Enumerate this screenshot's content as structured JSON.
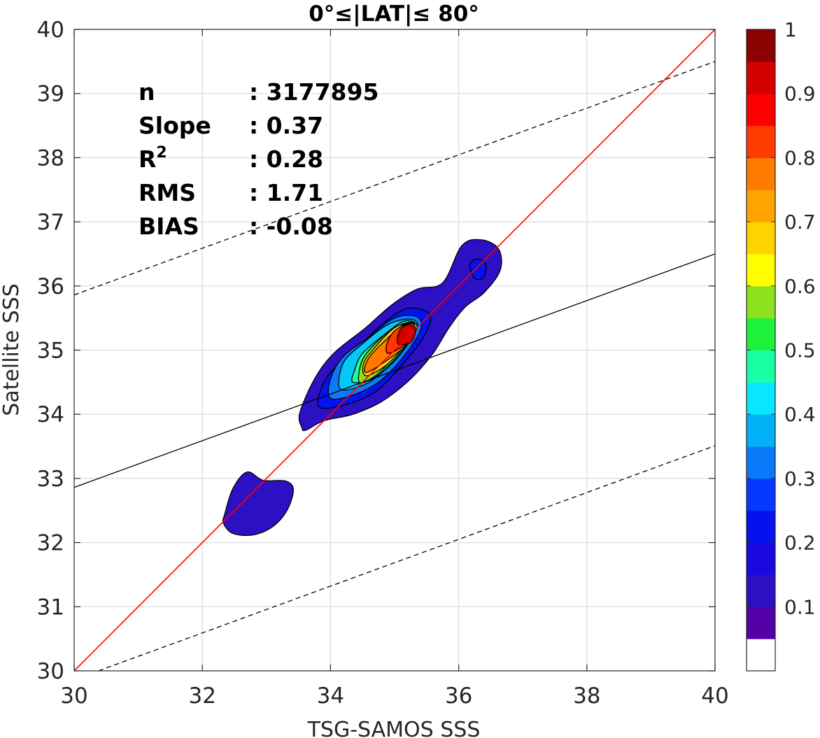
{
  "chart_data": {
    "type": "contour",
    "title": "0°≤|LAT|≤ 80°",
    "xlabel": "TSG-SAMOS SSS",
    "ylabel": "Satellite SSS",
    "xlim": [
      30,
      40
    ],
    "ylim": [
      30,
      40
    ],
    "xticks": [
      "30",
      "32",
      "34",
      "36",
      "38",
      "40"
    ],
    "yticks": [
      "30",
      "31",
      "32",
      "33",
      "34",
      "35",
      "36",
      "37",
      "38",
      "39",
      "40"
    ],
    "grid": true,
    "stats": [
      {
        "label": "n",
        "value": ": 3177895"
      },
      {
        "label": "Slope",
        "value": ": 0.37"
      },
      {
        "label": "R",
        "sup": "2",
        "value": ": 0.28"
      },
      {
        "label": "RMS",
        "value": ": 1.71"
      },
      {
        "label": "BIAS",
        "value": ": -0.08"
      }
    ],
    "lines": {
      "one_to_one": {
        "color": "#ff0000",
        "slope": 1.0,
        "intercept": 0.0
      },
      "regression": {
        "color": "#000000",
        "x0": 30,
        "y0": 32.86,
        "x1": 40,
        "y1": 36.5
      },
      "upper_bound": {
        "color": "#000000",
        "dashed": true,
        "x0": 30,
        "y0": 35.86,
        "x1": 40,
        "y1": 39.5
      },
      "lower_bound": {
        "color": "#000000",
        "dashed": true,
        "x0": 30.38,
        "y0": 30,
        "x1": 40,
        "y1": 33.51
      }
    },
    "contours": [
      {
        "level": 0.05,
        "fill": "#2c10c4",
        "points": [
          [
            33.61,
            33.75
          ],
          [
            33.9,
            33.9
          ],
          [
            34.35,
            34.0
          ],
          [
            34.8,
            34.2
          ],
          [
            35.25,
            34.55
          ],
          [
            35.6,
            34.95
          ],
          [
            35.85,
            35.35
          ],
          [
            36.1,
            35.67
          ],
          [
            36.4,
            35.9
          ],
          [
            36.65,
            36.25
          ],
          [
            36.62,
            36.58
          ],
          [
            36.35,
            36.72
          ],
          [
            36.05,
            36.63
          ],
          [
            35.75,
            36.05
          ],
          [
            35.35,
            35.95
          ],
          [
            34.95,
            35.7
          ],
          [
            34.55,
            35.35
          ],
          [
            34.05,
            34.95
          ],
          [
            33.75,
            34.55
          ],
          [
            33.52,
            34.02
          ],
          [
            33.55,
            33.8
          ]
        ]
      },
      {
        "level": 0.05,
        "fill": "#2c10c4",
        "points": [
          [
            32.35,
            32.45
          ],
          [
            32.48,
            32.85
          ],
          [
            32.7,
            33.1
          ],
          [
            32.95,
            32.97
          ],
          [
            33.3,
            32.96
          ],
          [
            33.42,
            32.82
          ],
          [
            33.32,
            32.5
          ],
          [
            33.1,
            32.25
          ],
          [
            32.8,
            32.12
          ],
          [
            32.48,
            32.14
          ],
          [
            32.33,
            32.3
          ]
        ]
      },
      {
        "level": 0.15,
        "fill": "#0512ef",
        "points": [
          [
            33.85,
            34.1
          ],
          [
            34.25,
            34.15
          ],
          [
            34.7,
            34.35
          ],
          [
            35.1,
            34.75
          ],
          [
            35.45,
            35.2
          ],
          [
            35.55,
            35.55
          ],
          [
            35.2,
            35.65
          ],
          [
            34.8,
            35.4
          ],
          [
            34.4,
            35.0
          ],
          [
            34.0,
            34.65
          ],
          [
            33.82,
            34.3
          ]
        ]
      },
      {
        "level": 0.15,
        "fill": "#0512ef",
        "points": [
          [
            36.2,
            36.2
          ],
          [
            36.28,
            36.1
          ],
          [
            36.4,
            36.15
          ],
          [
            36.42,
            36.35
          ],
          [
            36.3,
            36.42
          ],
          [
            36.18,
            36.35
          ]
        ]
      },
      {
        "level": 0.25,
        "fill": "#0b7af9",
        "points": [
          [
            34.0,
            34.25
          ],
          [
            34.35,
            34.3
          ],
          [
            34.75,
            34.5
          ],
          [
            35.1,
            34.85
          ],
          [
            35.4,
            35.3
          ],
          [
            35.35,
            35.52
          ],
          [
            35.0,
            35.5
          ],
          [
            34.6,
            35.2
          ],
          [
            34.2,
            34.9
          ],
          [
            34.0,
            34.55
          ]
        ]
      },
      {
        "level": 0.35,
        "fill": "#07c7f6",
        "points": [
          [
            34.15,
            34.4
          ],
          [
            34.5,
            34.45
          ],
          [
            34.8,
            34.65
          ],
          [
            35.1,
            34.95
          ],
          [
            35.35,
            35.35
          ],
          [
            35.25,
            35.48
          ],
          [
            34.9,
            35.4
          ],
          [
            34.5,
            35.1
          ],
          [
            34.2,
            34.8
          ]
        ]
      },
      {
        "level": 0.45,
        "fill": "#19ffa3",
        "points": [
          [
            34.35,
            34.5
          ],
          [
            34.65,
            34.55
          ],
          [
            34.95,
            34.8
          ],
          [
            35.2,
            35.1
          ],
          [
            35.35,
            35.38
          ],
          [
            35.15,
            35.45
          ],
          [
            34.85,
            35.25
          ],
          [
            34.5,
            34.95
          ],
          [
            34.38,
            34.7
          ]
        ]
      },
      {
        "level": 0.55,
        "fill": "#8ee11f",
        "points": [
          [
            34.45,
            34.5
          ],
          [
            34.7,
            34.6
          ],
          [
            35.0,
            34.9
          ],
          [
            35.25,
            35.2
          ],
          [
            35.3,
            35.42
          ],
          [
            35.05,
            35.38
          ],
          [
            34.75,
            35.15
          ],
          [
            34.5,
            34.85
          ]
        ]
      },
      {
        "level": 0.65,
        "fill": "#ffd300",
        "points": [
          [
            34.55,
            34.6
          ],
          [
            34.85,
            34.75
          ],
          [
            35.1,
            35.0
          ],
          [
            35.28,
            35.25
          ],
          [
            35.28,
            35.42
          ],
          [
            35.0,
            35.35
          ],
          [
            34.7,
            35.05
          ],
          [
            34.52,
            34.8
          ]
        ]
      },
      {
        "level": 0.75,
        "fill": "#ff7b00",
        "points": [
          [
            34.55,
            34.65
          ],
          [
            34.85,
            34.82
          ],
          [
            35.15,
            35.05
          ],
          [
            35.3,
            35.3
          ],
          [
            35.15,
            35.4
          ],
          [
            34.8,
            35.1
          ],
          [
            34.58,
            34.85
          ]
        ]
      },
      {
        "level": 0.85,
        "fill": "#ff3a00",
        "points": [
          [
            34.9,
            34.95
          ],
          [
            35.15,
            35.08
          ],
          [
            35.32,
            35.3
          ],
          [
            35.25,
            35.42
          ],
          [
            35.0,
            35.3
          ],
          [
            34.88,
            35.1
          ]
        ]
      },
      {
        "level": 0.95,
        "fill": "#d40000",
        "points": [
          [
            35.05,
            35.1
          ],
          [
            35.25,
            35.12
          ],
          [
            35.32,
            35.3
          ],
          [
            35.22,
            35.4
          ],
          [
            35.08,
            35.3
          ]
        ]
      }
    ],
    "colorbar": {
      "levels": [
        "#ffffff",
        "#5400a8",
        "#2c10c4",
        "#1a08e0",
        "#0512ef",
        "#0539ff",
        "#0b7af9",
        "#00b2f5",
        "#07e8ff",
        "#19ffa3",
        "#1cf23c",
        "#8ee11f",
        "#ffff00",
        "#ffd300",
        "#ffa300",
        "#ff7b00",
        "#ff3a00",
        "#ff0000",
        "#d40000",
        "#8b0000"
      ],
      "tick_values": [
        0.1,
        0.2,
        0.3,
        0.4,
        0.5,
        0.6,
        0.7,
        0.8,
        0.9,
        1
      ],
      "tick_labels": [
        "0.1",
        "0.2",
        "0.3",
        "0.4",
        "0.5",
        "0.6",
        "0.7",
        "0.8",
        "0.9",
        "1"
      ],
      "range": [
        0,
        1
      ]
    }
  }
}
